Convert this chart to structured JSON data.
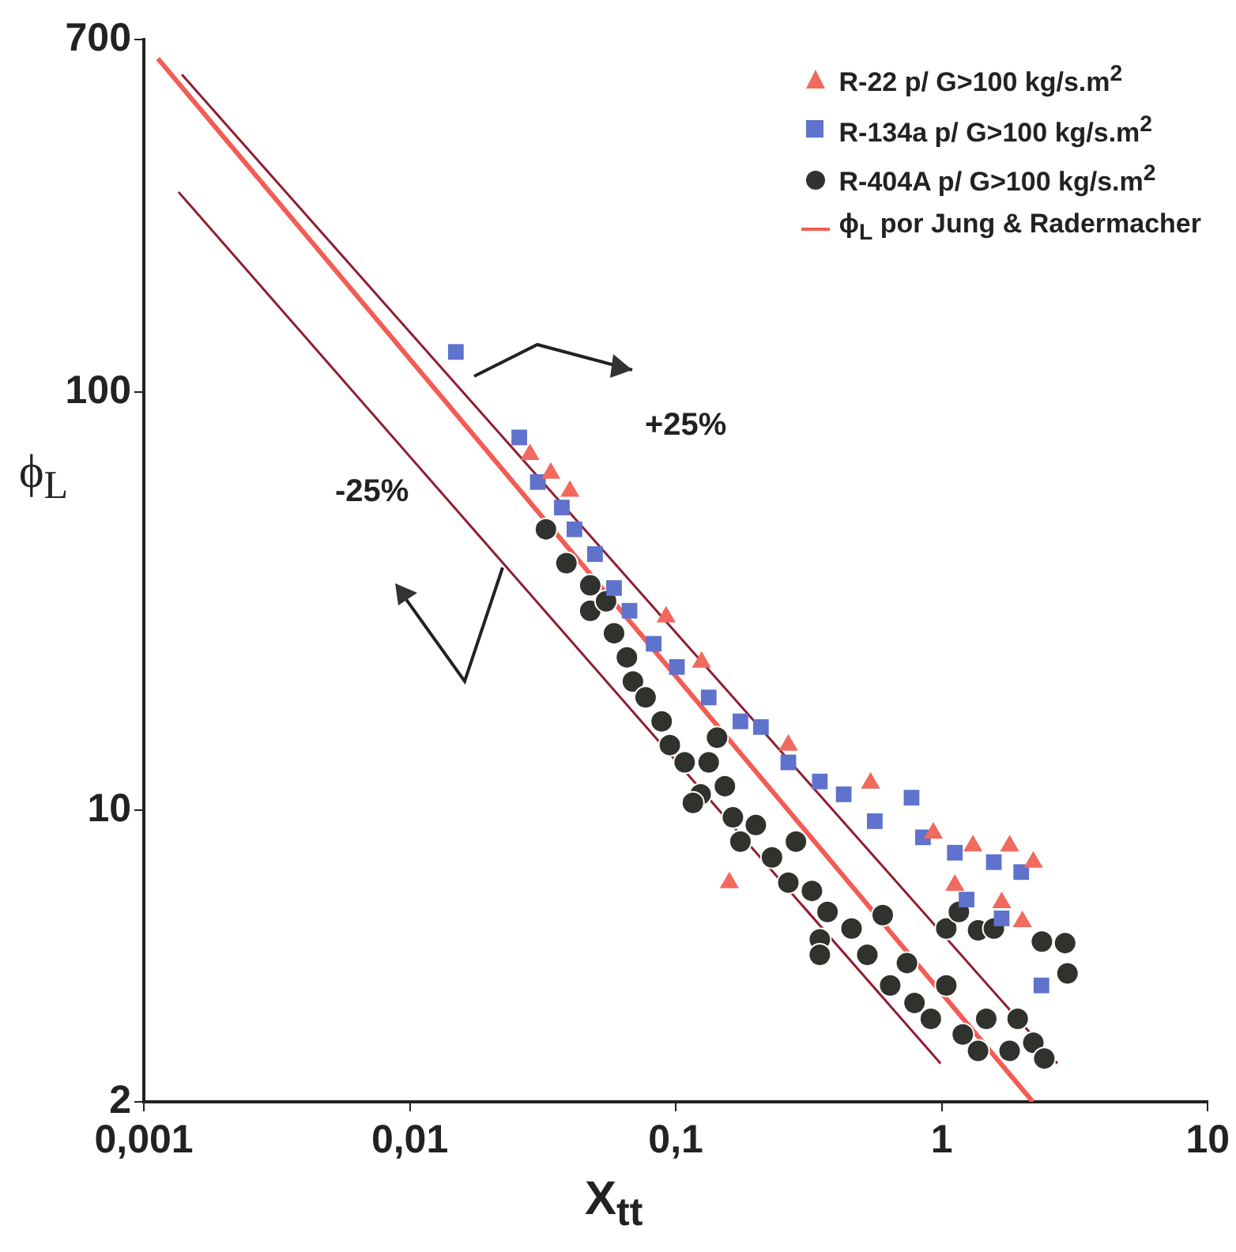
{
  "chart_data": {
    "type": "scatter",
    "xlabel": "X$_{tt}$",
    "ylabel": "ϕ$_{L}$",
    "log": "xy",
    "grid": false,
    "legend": "top right",
    "xlim": [
      0.001,
      10
    ],
    "xticks": [
      {
        "value": 0.001,
        "label": "0,001"
      },
      {
        "value": 0.01,
        "label": "0,01"
      },
      {
        "value": 0.1,
        "label": "0,1"
      },
      1,
      10
    ],
    "ylim": [
      2,
      700
    ],
    "yticks": [
      2,
      10,
      100,
      700
    ],
    "annotations": [
      "+25%",
      "-25%"
    ],
    "series": [
      {
        "name": "R-22 p/ G>100 kg/s.m$^{2}$",
        "type": "scatter",
        "marker": "triangle",
        "color": "#f06a5e",
        "x": [
          0.0283,
          0.0339,
          0.04,
          0.092,
          0.125,
          0.265,
          0.54,
          0.159,
          0.93,
          1.31,
          1.8,
          2.21,
          1.12,
          2.01,
          1.68
        ],
        "values": [
          71,
          64,
          58,
          29,
          22.6,
          14.3,
          11.6,
          6.7,
          8.8,
          8.2,
          8.2,
          7.5,
          6.6,
          5.4,
          6.0
        ]
      },
      {
        "name": "R-134a p/ G>100 kg/s.m$^{2}$",
        "type": "scatter",
        "marker": "square",
        "color": "#5f72cc",
        "x": [
          0.0149,
          0.0258,
          0.0303,
          0.0373,
          0.0416,
          0.0497,
          0.0586,
          0.067,
          0.0826,
          0.101,
          0.133,
          0.175,
          0.209,
          0.265,
          0.348,
          0.428,
          0.77,
          0.56,
          0.85,
          1.12,
          1.57,
          1.99,
          1.68,
          2.37,
          1.24
        ],
        "values": [
          125,
          78,
          61,
          53,
          47,
          41,
          34,
          30,
          25,
          22,
          18.6,
          16.3,
          15.8,
          13,
          11.7,
          10.9,
          10.7,
          9.4,
          8.6,
          7.9,
          7.5,
          7.1,
          5.5,
          3.8,
          6.1
        ]
      },
      {
        "name": "R-404A p/ G>100 kg/s.m$^{2}$",
        "type": "scatter",
        "marker": "circle",
        "color": "#30322e",
        "x": [
          0.0325,
          0.0388,
          0.0477,
          0.0477,
          0.0547,
          0.0586,
          0.0655,
          0.069,
          0.077,
          0.0885,
          0.095,
          0.108,
          0.124,
          0.133,
          0.153,
          0.164,
          0.175,
          0.2,
          0.23,
          0.265,
          0.283,
          0.325,
          0.372,
          0.348,
          0.348,
          0.458,
          0.525,
          0.6,
          0.64,
          0.74,
          0.79,
          0.91,
          1.04,
          1.04,
          1.2,
          1.37,
          1.47,
          1.8,
          1.93,
          2.21,
          2.43,
          2.38,
          2.91,
          2.97,
          1.37,
          1.57,
          1.16,
          0.116,
          0.143
        ],
        "values": [
          47,
          39,
          34.5,
          30,
          31.6,
          26.5,
          23.2,
          20.3,
          18.6,
          16.3,
          14.3,
          13,
          10.9,
          13,
          11.4,
          9.6,
          8.4,
          9.2,
          7.7,
          6.7,
          8.4,
          6.4,
          5.7,
          4.9,
          4.5,
          5.2,
          4.5,
          5.6,
          3.8,
          4.3,
          3.45,
          3.16,
          3.8,
          5.2,
          2.9,
          2.65,
          3.16,
          2.65,
          3.16,
          2.77,
          2.54,
          4.84,
          4.8,
          4.06,
          5.15,
          5.2,
          5.7,
          10.4,
          14.9
        ]
      },
      {
        "name": "ϕ$_{L}$ por Jung & Radermacher",
        "type": "line",
        "marker": "none",
        "color": "#f25c54",
        "x": [
          0.00113,
          2.2
        ],
        "values": [
          630,
          2
        ]
      },
      {
        "type": "line",
        "marker": "none",
        "color": "#8e1e30",
        "x": [
          0.00139,
          2.72
        ],
        "values": [
          577,
          2.47
        ]
      },
      {
        "type": "line",
        "marker": "none",
        "color": "#8e1e30",
        "x": [
          0.00135,
          0.99
        ],
        "values": [
          302,
          2.47
        ]
      }
    ]
  }
}
